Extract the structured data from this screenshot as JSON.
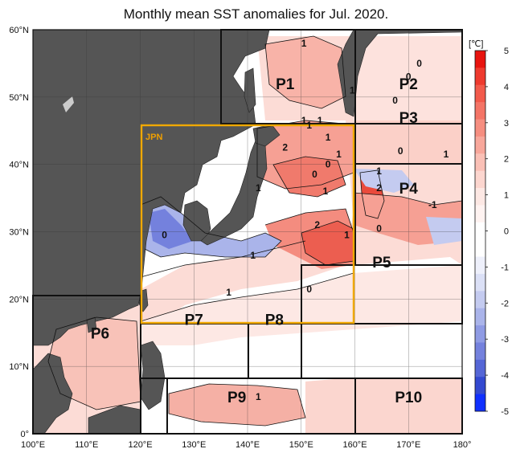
{
  "title": "Monthly mean SST anomalies for Jul. 2020.",
  "map": {
    "lon_range": [
      100,
      180
    ],
    "lat_range": [
      0,
      60
    ],
    "lon_ticks": [
      "100°E",
      "110°E",
      "120°E",
      "130°E",
      "140°E",
      "150°E",
      "160°E",
      "170°E",
      "180°"
    ],
    "lat_ticks": [
      "0°",
      "10°N",
      "20°N",
      "30°N",
      "40°N",
      "50°N",
      "60°N"
    ],
    "land_color": "#555555",
    "ocean_color": "#ffffff"
  },
  "regions": [
    {
      "name": "P1",
      "lon": 147,
      "lat": 52
    },
    {
      "name": "P2",
      "lon": 170,
      "lat": 52
    },
    {
      "name": "P3",
      "lon": 170,
      "lat": 47
    },
    {
      "name": "P4",
      "lon": 170,
      "lat": 36.5
    },
    {
      "name": "P5",
      "lon": 165,
      "lat": 25.5
    },
    {
      "name": "P6",
      "lon": 112.5,
      "lat": 15
    },
    {
      "name": "P7",
      "lon": 130,
      "lat": 17
    },
    {
      "name": "P8",
      "lon": 145,
      "lat": 17
    },
    {
      "name": "P9",
      "lon": 138,
      "lat": 5.5
    },
    {
      "name": "P10",
      "lon": 170,
      "lat": 5.5
    }
  ],
  "jpn_label": "JPN",
  "contour_labels": [
    {
      "text": "1",
      "lon": 150.5,
      "lat": 58
    },
    {
      "text": "0",
      "lon": 172,
      "lat": 55
    },
    {
      "text": "0",
      "lon": 170,
      "lat": 53
    },
    {
      "text": "1",
      "lon": 159.5,
      "lat": 51
    },
    {
      "text": "0",
      "lon": 167.5,
      "lat": 49.5
    },
    {
      "text": "1",
      "lon": 150.5,
      "lat": 46.5
    },
    {
      "text": "1",
      "lon": 153.5,
      "lat": 46.5
    },
    {
      "text": "1",
      "lon": 151.5,
      "lat": 45.8
    },
    {
      "text": "1",
      "lon": 155,
      "lat": 44
    },
    {
      "text": "2",
      "lon": 147,
      "lat": 42.5
    },
    {
      "text": "1",
      "lon": 157,
      "lat": 41.5
    },
    {
      "text": "0",
      "lon": 155,
      "lat": 40
    },
    {
      "text": "0",
      "lon": 168.5,
      "lat": 42
    },
    {
      "text": "1",
      "lon": 177,
      "lat": 41.5
    },
    {
      "text": "1",
      "lon": 164.5,
      "lat": 39
    },
    {
      "text": "0",
      "lon": 152.5,
      "lat": 38.5
    },
    {
      "text": "1",
      "lon": 142,
      "lat": 36.5
    },
    {
      "text": "1",
      "lon": 154.5,
      "lat": 36
    },
    {
      "text": "2",
      "lon": 164.5,
      "lat": 36.5
    },
    {
      "text": "-1",
      "lon": 174.5,
      "lat": 34
    },
    {
      "text": "2",
      "lon": 153,
      "lat": 31
    },
    {
      "text": "1",
      "lon": 158.5,
      "lat": 29.5
    },
    {
      "text": "0",
      "lon": 164.5,
      "lat": 30.5
    },
    {
      "text": "0",
      "lon": 124.5,
      "lat": 29.5
    },
    {
      "text": "1",
      "lon": 141,
      "lat": 26.5
    },
    {
      "text": "0",
      "lon": 151.5,
      "lat": 21.5
    },
    {
      "text": "1",
      "lon": 136.5,
      "lat": 21
    },
    {
      "text": "1",
      "lon": 142,
      "lat": 5.5
    }
  ],
  "colorbar": {
    "unit": "[℃]",
    "ticks": [
      "5",
      "4",
      "3",
      "2",
      "1",
      "0",
      "-1",
      "-2",
      "-3",
      "-4",
      "-5"
    ],
    "colors": [
      "#e8140f",
      "#ee3a2e",
      "#f25a4b",
      "#f47466",
      "#f68e80",
      "#f8a79b",
      "#fac0b6",
      "#fcd6cf",
      "#fde8e4",
      "#fff3f1",
      "#ffffff",
      "#ffffff",
      "#eef0fb",
      "#dbe0f6",
      "#c4cbf0",
      "#aab4ea",
      "#8f9be4",
      "#7481dd",
      "#5566d6",
      "#3349d0",
      "#1030ff"
    ]
  }
}
